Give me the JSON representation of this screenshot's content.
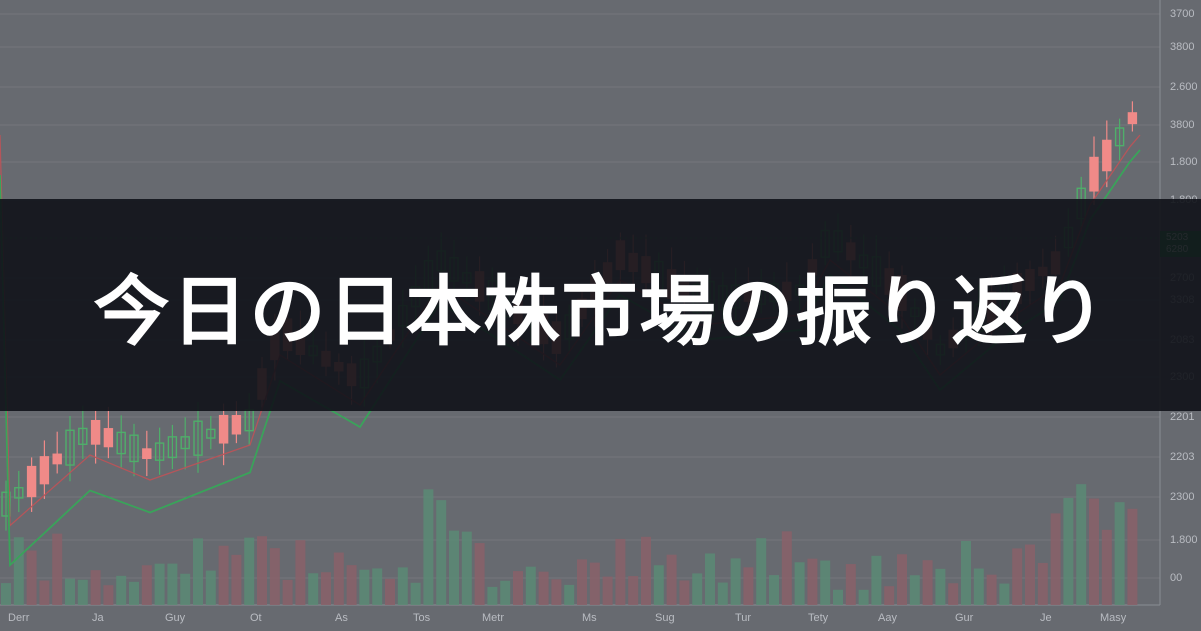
{
  "title": "今日の日本株市場の振り返り",
  "axis": {
    "y_labels": [
      "3700",
      "3800",
      "2.600",
      "3800",
      "1.800",
      "1.800",
      "2700",
      "3308",
      "2083",
      "2300",
      "2201",
      "2203",
      "2300",
      "1.800",
      "00"
    ],
    "x_labels": [
      "Derr",
      "Ja",
      "Guy",
      "Ot",
      "As",
      "Tos",
      "Metr",
      "Ms",
      "Sug",
      "Tur",
      "Tety",
      "Aay",
      "Gur",
      "Je",
      "Masy"
    ],
    "price_tag": [
      "5203",
      "6280"
    ]
  },
  "colors": {
    "background": "#676a70",
    "banner": "#101218",
    "up_candle": "#4fae6a",
    "down_candle": "#f08a88",
    "ma_green": "#3aa35a",
    "ma_red": "#b5555a"
  }
}
